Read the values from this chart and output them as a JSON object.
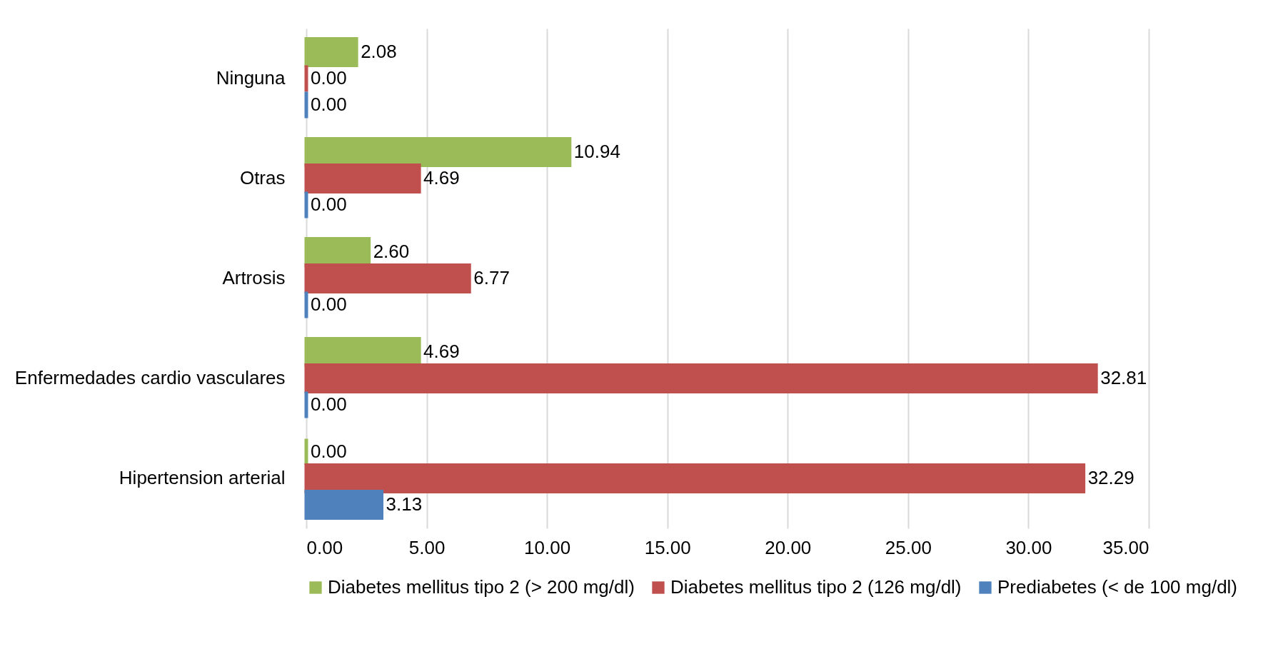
{
  "chart_data": {
    "type": "bar",
    "orientation": "horizontal",
    "categories": [
      "Ninguna",
      "Otras",
      "Artrosis",
      "Enfermedades cardio vasculares",
      "Hipertension arterial"
    ],
    "series": [
      {
        "name": "Diabetes mellitus tipo 2 (> 200 mg/dl)",
        "color": "#9bbb59",
        "values": [
          2.08,
          10.94,
          2.6,
          4.69,
          0
        ],
        "value_labels": [
          "2.08",
          "10.94",
          "2.60",
          "4.69",
          "0.00"
        ]
      },
      {
        "name": "Diabetes mellitus tipo 2 (126 mg/dl)",
        "color": "#c0504d",
        "values": [
          0,
          4.69,
          6.77,
          32.81,
          32.29
        ],
        "value_labels": [
          "0.00",
          "4.69",
          "6.77",
          "32.81",
          "32.29"
        ]
      },
      {
        "name": "Prediabetes (< de 100 mg/dl)",
        "color": "#4f81bd",
        "values": [
          0,
          0,
          0,
          0,
          3.13
        ],
        "value_labels": [
          "0.00",
          "0.00",
          "0.00",
          "0.00",
          "3.13"
        ]
      }
    ],
    "xlim": [
      0,
      35
    ],
    "xticks": [
      {
        "value": 0,
        "label": "0.00"
      },
      {
        "value": 5,
        "label": "5.00"
      },
      {
        "value": 10,
        "label": "10.00"
      },
      {
        "value": 15,
        "label": "15.00"
      },
      {
        "value": 20,
        "label": "20.00"
      },
      {
        "value": 25,
        "label": "25.00"
      },
      {
        "value": 30,
        "label": "30.00"
      },
      {
        "value": 35,
        "label": "35.00"
      }
    ],
    "grid": "x",
    "legend": "bottom"
  }
}
